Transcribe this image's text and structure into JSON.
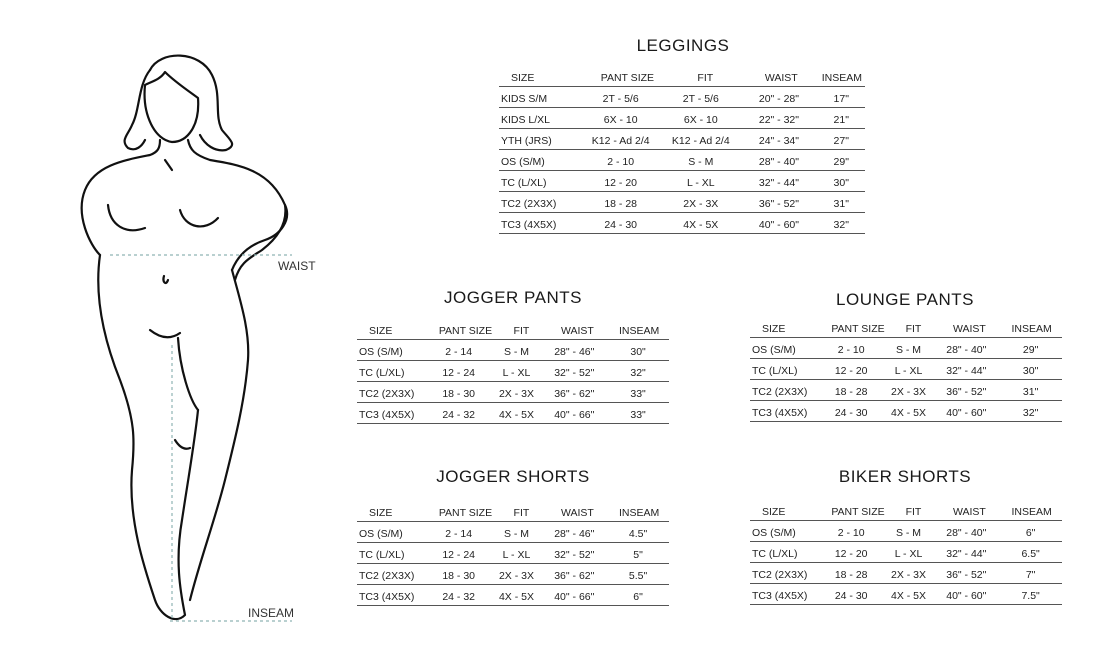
{
  "figure": {
    "waist_label": "WAIST",
    "inseam_label": "INSEAM"
  },
  "columns": [
    "SIZE",
    "PANT SIZE",
    "FIT",
    "WAIST",
    "INSEAM"
  ],
  "tables": {
    "leggings": {
      "title": "LEGGINGS",
      "rows": [
        [
          "KIDS S/M",
          "2T - 5/6",
          "2T - 5/6",
          "20\" - 28\"",
          "17\""
        ],
        [
          "KIDS L/XL",
          "6X - 10",
          "6X - 10",
          "22\" - 32\"",
          "21\""
        ],
        [
          "YTH (JRS)",
          "K12 - Ad 2/4",
          "K12 - Ad 2/4",
          "24\" - 34\"",
          "27\""
        ],
        [
          "OS (S/M)",
          "2 - 10",
          "S - M",
          "28\" - 40\"",
          "29\""
        ],
        [
          "TC (L/XL)",
          "12 - 20",
          "L - XL",
          "32\" - 44\"",
          "30\""
        ],
        [
          "TC2 (2X3X)",
          "18 - 28",
          "2X - 3X",
          "36\" - 52\"",
          "31\""
        ],
        [
          "TC3 (4X5X)",
          "24 - 30",
          "4X - 5X",
          "40\" - 60\"",
          "32\""
        ]
      ]
    },
    "jogger_pants": {
      "title": "JOGGER PANTS",
      "rows": [
        [
          "OS (S/M)",
          "2 - 14",
          "S - M",
          "28\" - 46\"",
          "30\""
        ],
        [
          "TC (L/XL)",
          "12 - 24",
          "L - XL",
          "32\" - 52\"",
          "32\""
        ],
        [
          "TC2 (2X3X)",
          "18 - 30",
          "2X - 3X",
          "36\" - 62\"",
          "33\""
        ],
        [
          "TC3 (4X5X)",
          "24 - 32",
          "4X - 5X",
          "40\" - 66\"",
          "33\""
        ]
      ]
    },
    "lounge_pants": {
      "title": "LOUNGE PANTS",
      "rows": [
        [
          "OS (S/M)",
          "2 - 10",
          "S - M",
          "28\" - 40\"",
          "29\""
        ],
        [
          "TC (L/XL)",
          "12 - 20",
          "L - XL",
          "32\" - 44\"",
          "30\""
        ],
        [
          "TC2 (2X3X)",
          "18 - 28",
          "2X - 3X",
          "36\" - 52\"",
          "31\""
        ],
        [
          "TC3 (4X5X)",
          "24 - 30",
          "4X - 5X",
          "40\" - 60\"",
          "32\""
        ]
      ]
    },
    "jogger_shorts": {
      "title": "JOGGER SHORTS",
      "rows": [
        [
          "OS (S/M)",
          "2 - 14",
          "S - M",
          "28\" - 46\"",
          "4.5\""
        ],
        [
          "TC (L/XL)",
          "12 - 24",
          "L - XL",
          "32\" - 52\"",
          "5\""
        ],
        [
          "TC2 (2X3X)",
          "18 - 30",
          "2X - 3X",
          "36\" - 62\"",
          "5.5\""
        ],
        [
          "TC3 (4X5X)",
          "24 - 32",
          "4X - 5X",
          "40\" - 66\"",
          "6\""
        ]
      ]
    },
    "biker_shorts": {
      "title": "BIKER SHORTS",
      "rows": [
        [
          "OS (S/M)",
          "2 - 10",
          "S - M",
          "28\" - 40\"",
          "6\""
        ],
        [
          "TC (L/XL)",
          "12 - 20",
          "L - XL",
          "32\" - 44\"",
          "6.5\""
        ],
        [
          "TC2 (2X3X)",
          "18 - 28",
          "2X - 3X",
          "36\" - 52\"",
          "7\""
        ],
        [
          "TC3 (4X5X)",
          "24 - 30",
          "4X - 5X",
          "40\" - 60\"",
          "7.5\""
        ]
      ]
    }
  }
}
